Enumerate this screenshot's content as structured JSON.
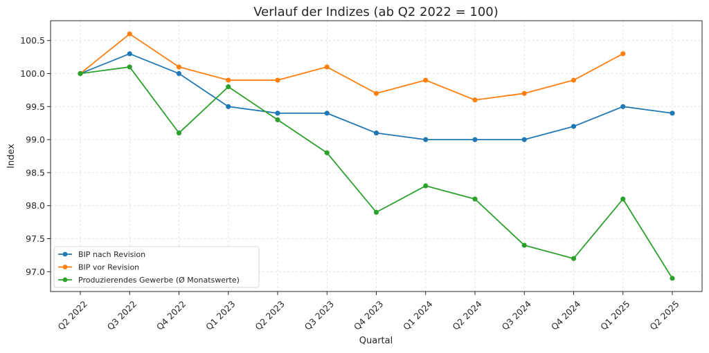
{
  "chart_data": {
    "type": "line",
    "title": "Verlauf der Indizes (ab Q2 2022 = 100)",
    "xlabel": "Quartal",
    "ylabel": "Index",
    "categories": [
      "Q2 2022",
      "Q3 2022",
      "Q4 2022",
      "Q1 2023",
      "Q2 2023",
      "Q3 2023",
      "Q4 2023",
      "Q1 2024",
      "Q2 2024",
      "Q3 2024",
      "Q4 2024",
      "Q1 2025",
      "Q2 2025"
    ],
    "ylim": [
      96.7,
      100.8
    ],
    "yticks": [
      "97.0",
      "97.5",
      "98.0",
      "98.5",
      "99.0",
      "99.5",
      "100.0",
      "100.5"
    ],
    "grid": true,
    "legend_position": "bottom-left",
    "series": [
      {
        "name": "BIP nach Revision",
        "color": "#1f77b4",
        "values": [
          100.0,
          100.3,
          100.0,
          99.5,
          99.4,
          99.4,
          99.1,
          99.0,
          99.0,
          99.0,
          99.2,
          99.5,
          99.4
        ]
      },
      {
        "name": "BIP vor Revision",
        "color": "#ff7f0e",
        "values": [
          100.0,
          100.6,
          100.1,
          99.9,
          99.9,
          100.1,
          99.7,
          99.9,
          99.6,
          99.7,
          99.9,
          100.3,
          null
        ]
      },
      {
        "name": "Produzierendes Gewerbe (Ø Monatswerte)",
        "color": "#2ca02c",
        "values": [
          100.0,
          100.1,
          99.1,
          99.8,
          99.3,
          98.8,
          97.9,
          98.3,
          98.1,
          97.4,
          97.2,
          98.1,
          96.9
        ]
      }
    ]
  }
}
